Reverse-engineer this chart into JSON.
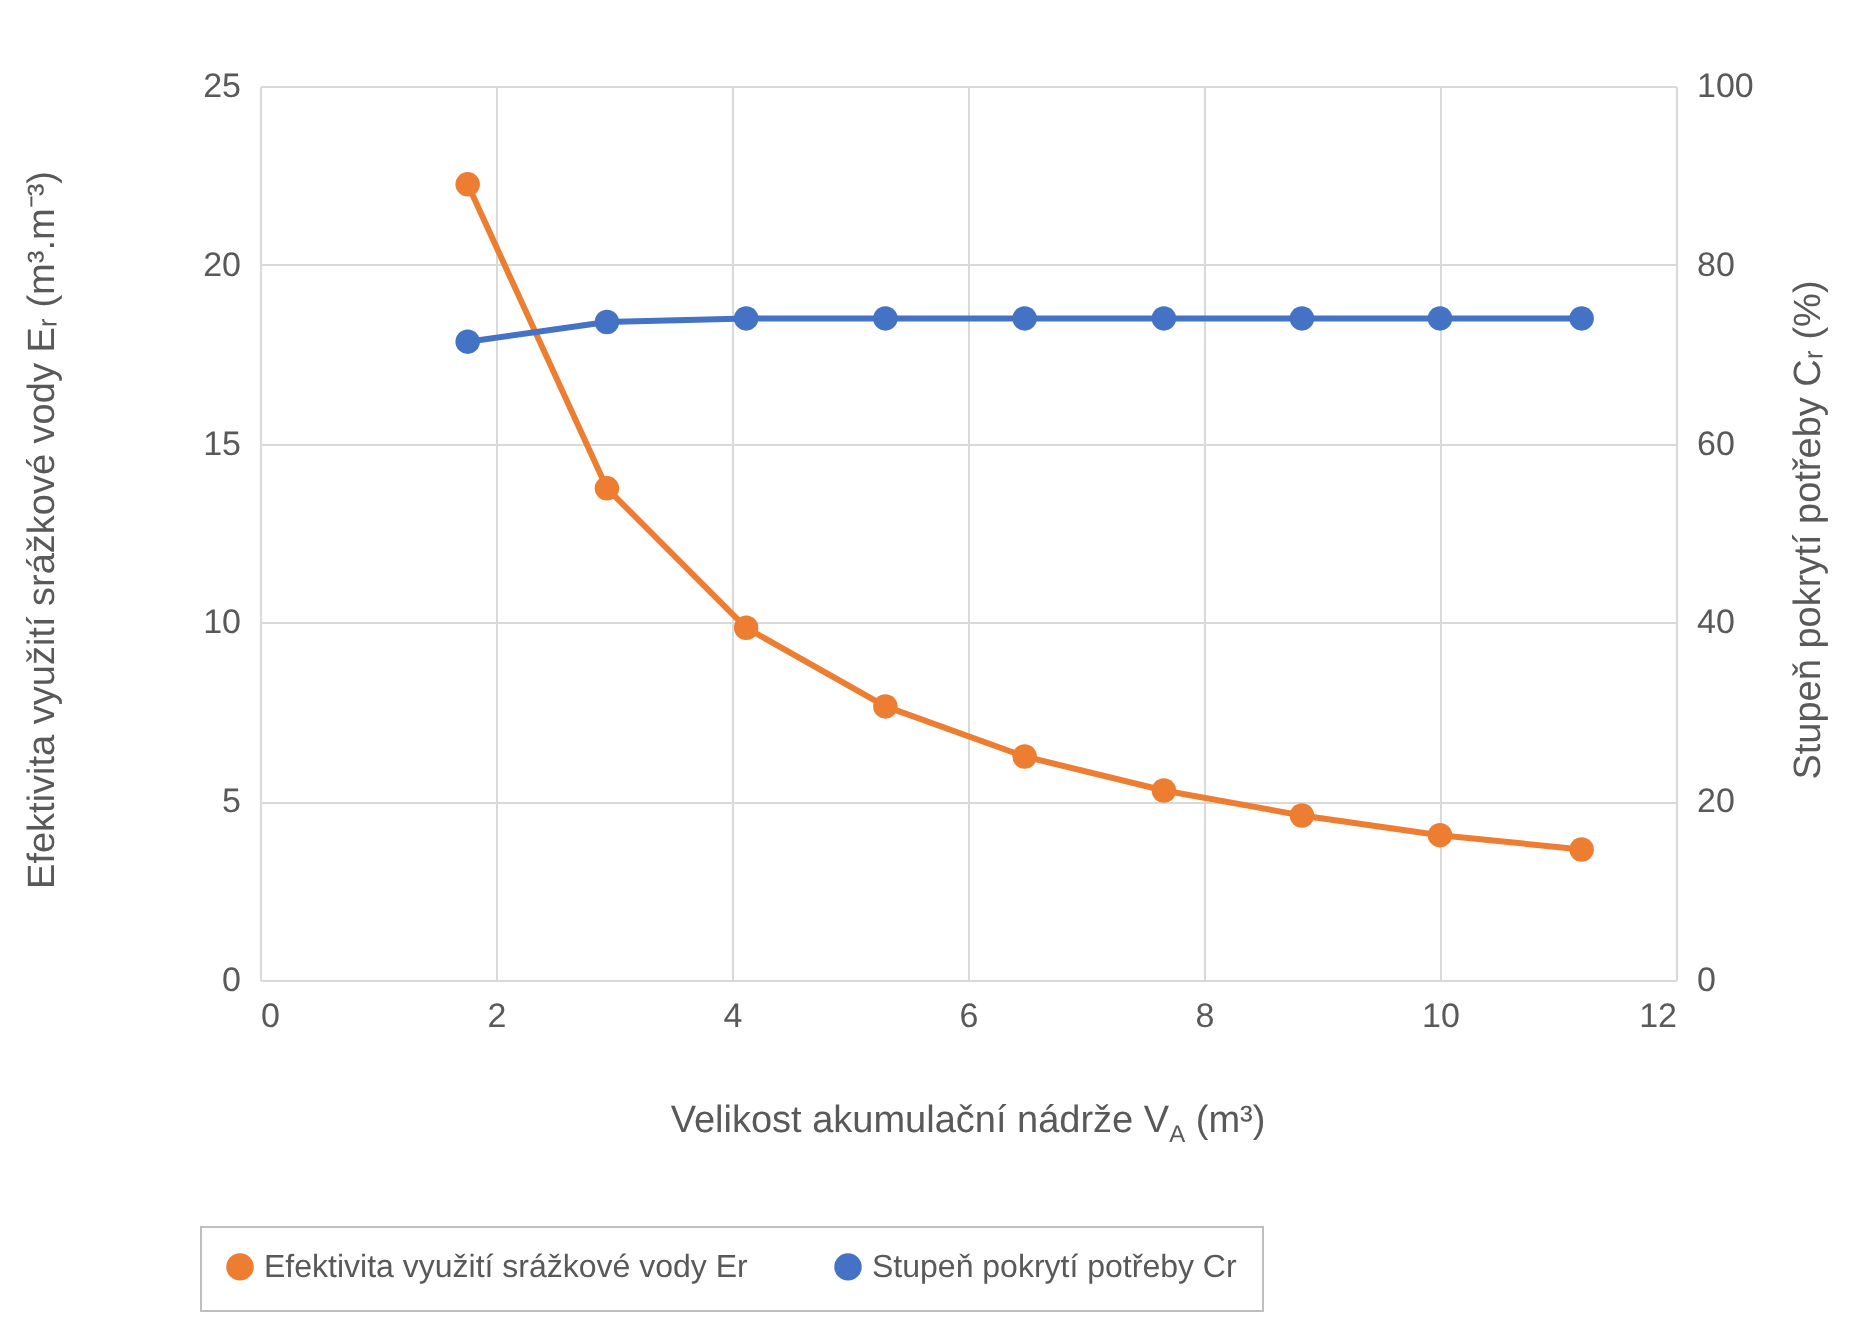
{
  "chart_data": {
    "type": "line",
    "xlabel": "Velikost akumulační nádrže V$_{A}$ (m³)",
    "ylabel": "Efektivita využití srážkové vody Eᵣ (m³.m⁻³)",
    "y2label": "Stupeň pokrytí potřeby Cᵣ (%)",
    "x": [
      1.76,
      2.94,
      4.12,
      5.3,
      6.48,
      7.66,
      8.83,
      10.0,
      11.2
    ],
    "series": [
      {
        "name": "Efektivita využití srážkové vody Er",
        "color": "#ed7d31",
        "values": [
          22.25,
          13.75,
          9.85,
          7.65,
          6.25,
          5.3,
          4.6,
          4.05,
          3.65
        ]
      },
      {
        "name": "Stupeň pokrytí potřeby Cr",
        "color": "#4472c4",
        "axis": "y2",
        "values": [
          71.4,
          73.6,
          74,
          74,
          74,
          74,
          74,
          74,
          74
        ]
      }
    ],
    "xlim": [
      0,
      12
    ],
    "xticks": [
      0,
      2,
      4,
      6,
      8,
      10,
      12
    ],
    "ylim": [
      0,
      25
    ],
    "yticks": [
      0,
      5,
      10,
      15,
      20,
      25
    ],
    "y2lim": [
      0,
      100
    ],
    "y2ticks": [
      0,
      20,
      40,
      60,
      80,
      100
    ],
    "grid": true,
    "legend": "bottom",
    "marker": "circle",
    "line_style": "solid"
  }
}
